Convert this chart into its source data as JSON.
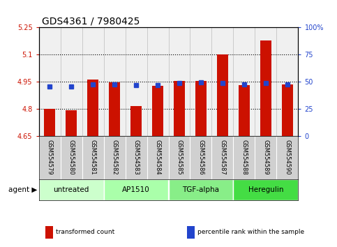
{
  "title": "GDS4361 / 7980425",
  "samples": [
    "GSM554579",
    "GSM554580",
    "GSM554581",
    "GSM554582",
    "GSM554583",
    "GSM554584",
    "GSM554585",
    "GSM554586",
    "GSM554587",
    "GSM554588",
    "GSM554589",
    "GSM554590"
  ],
  "bar_values": [
    4.8,
    4.79,
    4.96,
    4.945,
    4.815,
    4.925,
    4.955,
    4.955,
    5.1,
    4.93,
    5.175,
    4.935
  ],
  "blue_values": [
    4.923,
    4.923,
    4.933,
    4.933,
    4.93,
    4.93,
    4.94,
    4.945,
    4.94,
    4.933,
    4.94,
    4.933
  ],
  "bar_base": 4.65,
  "ylim": [
    4.65,
    5.25
  ],
  "yticks": [
    4.65,
    4.8,
    4.95,
    5.1,
    5.25
  ],
  "ytick_labels": [
    "4.65",
    "4.8",
    "4.95",
    "5.1",
    "5.25"
  ],
  "right_yticks_vals": [
    0,
    25,
    50,
    75,
    100
  ],
  "right_ytick_labels": [
    "0",
    "25",
    "50",
    "75",
    "100%"
  ],
  "ymin": 4.65,
  "ymax": 5.25,
  "grid_lines": [
    4.8,
    4.95,
    5.1
  ],
  "agents": [
    {
      "label": "untreated",
      "start": 0,
      "end": 3,
      "color": "#ccffcc"
    },
    {
      "label": "AP1510",
      "start": 3,
      "end": 6,
      "color": "#aaffaa"
    },
    {
      "label": "TGF-alpha",
      "start": 6,
      "end": 9,
      "color": "#88ee88"
    },
    {
      "label": "Heregulin",
      "start": 9,
      "end": 12,
      "color": "#44dd44"
    }
  ],
  "bar_color": "#cc1100",
  "blue_color": "#2244cc",
  "bar_width": 0.5,
  "blue_marker_size": 5,
  "legend_items": [
    {
      "label": "transformed count",
      "color": "#cc1100"
    },
    {
      "label": "percentile rank within the sample",
      "color": "#2244cc"
    }
  ],
  "title_fontsize": 10,
  "tick_fontsize": 7,
  "sample_fontsize": 6,
  "axis_label_color_left": "#cc1100",
  "axis_label_color_right": "#2244cc",
  "bg_color_plot": "#f0f0f0",
  "bg_color_label": "#d0d0d0"
}
